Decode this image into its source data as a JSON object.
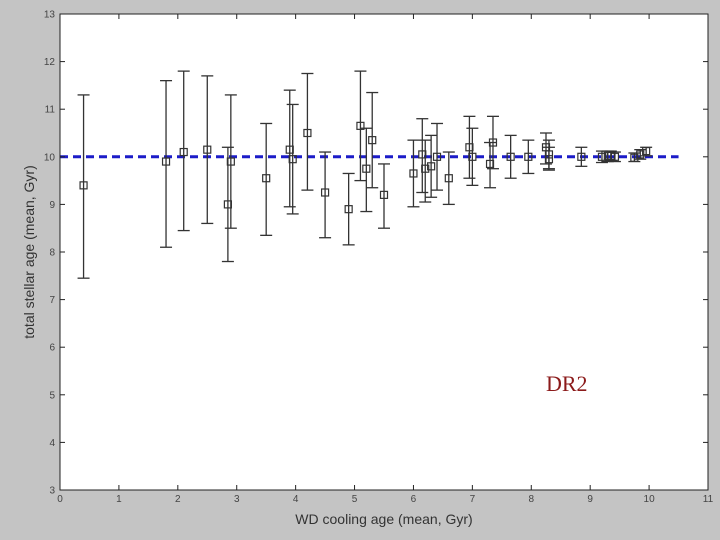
{
  "chart_data": {
    "type": "scatter",
    "xlabel": "WD cooling age (mean, Gyr)",
    "ylabel": "total stellar age (mean, Gyr)",
    "xlim": [
      0,
      11
    ],
    "ylim": [
      3,
      13
    ],
    "x_ticks": [
      "0",
      "1",
      "2",
      "3",
      "4",
      "5",
      "6",
      "7",
      "8",
      "9",
      "10",
      "11"
    ],
    "y_ticks": [
      "3",
      "4",
      "5",
      "6",
      "7",
      "8",
      "9",
      "10",
      "11",
      "12",
      "13"
    ],
    "grid": false,
    "reference_line": {
      "y": 10,
      "x_range": [
        0,
        10.5
      ],
      "style": "dashed",
      "color": "#1c1cc8"
    },
    "annotation": {
      "text": "DR2",
      "x": 8.3,
      "y": 5.2
    },
    "marker_color": "#333333",
    "points": [
      {
        "x": 0.4,
        "y": 9.4,
        "yerr_low": 7.45,
        "yerr_high": 11.3
      },
      {
        "x": 1.8,
        "y": 9.9,
        "yerr_low": 8.1,
        "yerr_high": 11.6
      },
      {
        "x": 2.1,
        "y": 10.1,
        "yerr_low": 8.45,
        "yerr_high": 11.8
      },
      {
        "x": 2.5,
        "y": 10.15,
        "yerr_low": 8.6,
        "yerr_high": 11.7
      },
      {
        "x": 2.85,
        "y": 9.0,
        "yerr_low": 7.8,
        "yerr_high": 10.2
      },
      {
        "x": 2.9,
        "y": 9.9,
        "yerr_low": 8.5,
        "yerr_high": 11.3
      },
      {
        "x": 3.5,
        "y": 9.55,
        "yerr_low": 8.35,
        "yerr_high": 10.7
      },
      {
        "x": 3.9,
        "y": 10.15,
        "yerr_low": 8.95,
        "yerr_high": 11.4
      },
      {
        "x": 3.95,
        "y": 9.95,
        "yerr_low": 8.8,
        "yerr_high": 11.1
      },
      {
        "x": 4.2,
        "y": 10.5,
        "yerr_low": 9.3,
        "yerr_high": 11.75
      },
      {
        "x": 4.5,
        "y": 9.25,
        "yerr_low": 8.3,
        "yerr_high": 10.1
      },
      {
        "x": 4.9,
        "y": 8.9,
        "yerr_low": 8.15,
        "yerr_high": 9.65
      },
      {
        "x": 5.1,
        "y": 10.65,
        "yerr_low": 9.5,
        "yerr_high": 11.8
      },
      {
        "x": 5.2,
        "y": 9.75,
        "yerr_low": 8.85,
        "yerr_high": 10.6
      },
      {
        "x": 5.3,
        "y": 10.35,
        "yerr_low": 9.35,
        "yerr_high": 11.35
      },
      {
        "x": 5.5,
        "y": 9.2,
        "yerr_low": 8.5,
        "yerr_high": 9.85
      },
      {
        "x": 6.0,
        "y": 9.65,
        "yerr_low": 8.95,
        "yerr_high": 10.35
      },
      {
        "x": 6.15,
        "y": 10.05,
        "yerr_low": 9.25,
        "yerr_high": 10.8
      },
      {
        "x": 6.2,
        "y": 9.75,
        "yerr_low": 9.05,
        "yerr_high": 10.35
      },
      {
        "x": 6.3,
        "y": 9.8,
        "yerr_low": 9.15,
        "yerr_high": 10.45
      },
      {
        "x": 6.4,
        "y": 10.0,
        "yerr_low": 9.3,
        "yerr_high": 10.7
      },
      {
        "x": 6.6,
        "y": 9.55,
        "yerr_low": 9.0,
        "yerr_high": 10.1
      },
      {
        "x": 6.95,
        "y": 10.2,
        "yerr_low": 9.55,
        "yerr_high": 10.85
      },
      {
        "x": 7.0,
        "y": 10.0,
        "yerr_low": 9.4,
        "yerr_high": 10.6
      },
      {
        "x": 7.3,
        "y": 9.85,
        "yerr_low": 9.35,
        "yerr_high": 10.3
      },
      {
        "x": 7.35,
        "y": 10.3,
        "yerr_low": 9.75,
        "yerr_high": 10.85
      },
      {
        "x": 7.65,
        "y": 10.0,
        "yerr_low": 9.55,
        "yerr_high": 10.45
      },
      {
        "x": 7.95,
        "y": 10.0,
        "yerr_low": 9.65,
        "yerr_high": 10.35
      },
      {
        "x": 8.25,
        "y": 10.2,
        "yerr_low": 9.85,
        "yerr_high": 10.5
      },
      {
        "x": 8.3,
        "y": 10.05,
        "yerr_low": 9.75,
        "yerr_high": 10.35
      },
      {
        "x": 8.3,
        "y": 9.95,
        "yerr_low": 9.72,
        "yerr_high": 10.2
      },
      {
        "x": 8.85,
        "y": 10.0,
        "yerr_low": 9.8,
        "yerr_high": 10.2
      },
      {
        "x": 9.2,
        "y": 10.0,
        "yerr_low": 9.88,
        "yerr_high": 10.12
      },
      {
        "x": 9.3,
        "y": 10.02,
        "yerr_low": 9.9,
        "yerr_high": 10.12
      },
      {
        "x": 9.35,
        "y": 10.02,
        "yerr_low": 9.92,
        "yerr_high": 10.12
      },
      {
        "x": 9.42,
        "y": 10.0,
        "yerr_low": 9.9,
        "yerr_high": 10.1
      },
      {
        "x": 9.75,
        "y": 9.98,
        "yerr_low": 9.9,
        "yerr_high": 10.08
      },
      {
        "x": 9.85,
        "y": 10.05,
        "yerr_low": 9.95,
        "yerr_high": 10.15
      },
      {
        "x": 9.95,
        "y": 10.12,
        "yerr_low": 10.02,
        "yerr_high": 10.2
      }
    ]
  }
}
